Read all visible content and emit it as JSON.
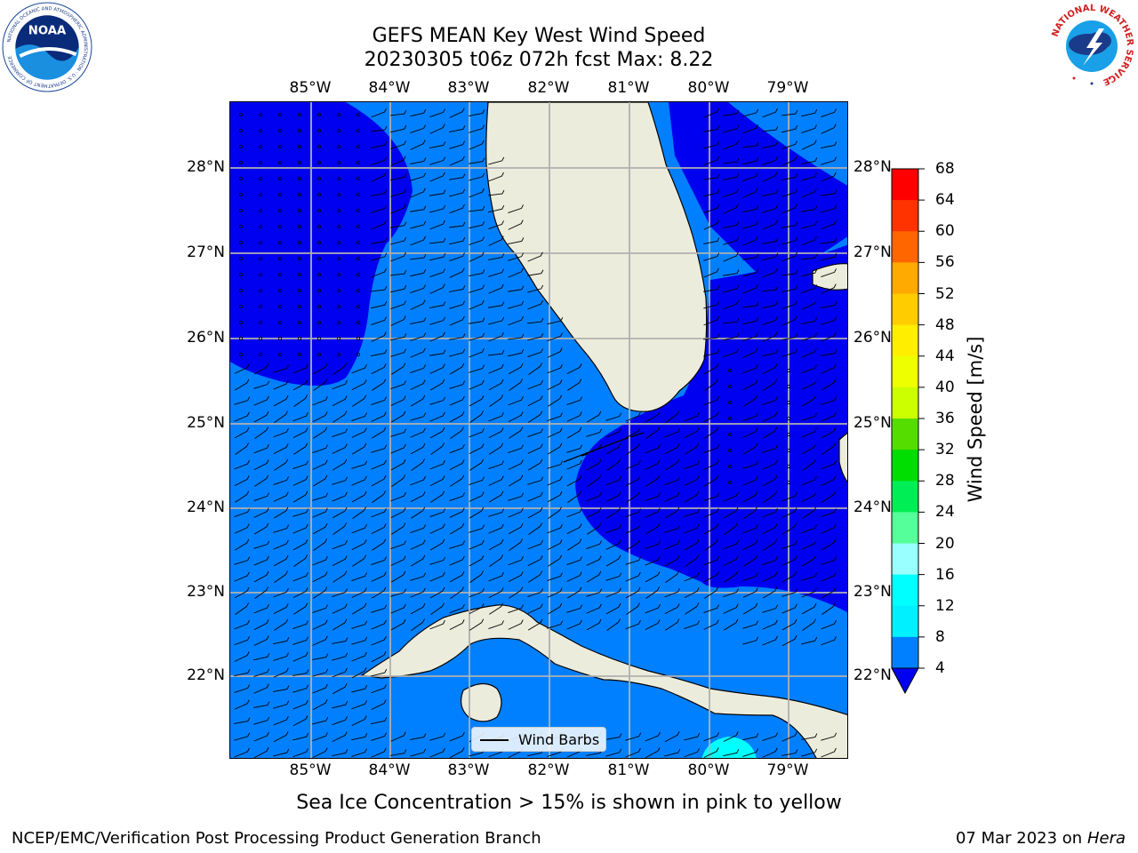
{
  "header": {
    "title_line1": "GEFS MEAN Key West Wind Speed",
    "title_line2": "20230305 t06z 072h fcst   Max: 8.22"
  },
  "logos": {
    "left": "noaa-logo",
    "left_text": "NOAA",
    "left_ring_text": "NATIONAL OCEANIC AND ATMOSPHERIC ADMINISTRATION · U.S. DEPARTMENT OF COMMERCE",
    "right": "nws-logo",
    "right_ring_text": "NATIONAL WEATHER SERVICE"
  },
  "map": {
    "lon_labels": [
      "85°W",
      "84°W",
      "83°W",
      "82°W",
      "81°W",
      "80°W",
      "79°W"
    ],
    "lat_labels": [
      "28°N",
      "27°N",
      "26°N",
      "25°N",
      "24°N",
      "23°N",
      "22°N"
    ],
    "legend_label": "Wind Barbs",
    "colors": {
      "ocean_4_8": "#0080ff",
      "ocean_lt_4": "#0000f0",
      "ocean_8_12": "#00ffff",
      "land": "#ececdc",
      "grid": "#b0b0b0"
    }
  },
  "colorbar": {
    "title": "Wind Speed [m/s]",
    "ticks": [
      "68",
      "64",
      "60",
      "56",
      "52",
      "48",
      "44",
      "40",
      "36",
      "32",
      "28",
      "24",
      "20",
      "16",
      "12",
      "8",
      "4"
    ],
    "colors_top_to_bottom": [
      "#ff0000",
      "#ff3300",
      "#ff6600",
      "#ff8800",
      "#ffaa00",
      "#ffcc00",
      "#ffee00",
      "#eeff00",
      "#ccff00",
      "#99ee00",
      "#55dd00",
      "#00dd00",
      "#00ee55",
      "#55ff99",
      "#99ffff",
      "#55ffff",
      "#00ffff",
      "#00f0ff",
      "#0080ff"
    ],
    "under_color": "#0000f0"
  },
  "subtitle": "Sea Ice Concentration > 15% is shown in pink to yellow",
  "footer": {
    "left": "NCEP/EMC/Verification Post Processing Product Generation Branch",
    "right_date": "07 Mar 2023 on",
    "right_host": "Hera"
  }
}
